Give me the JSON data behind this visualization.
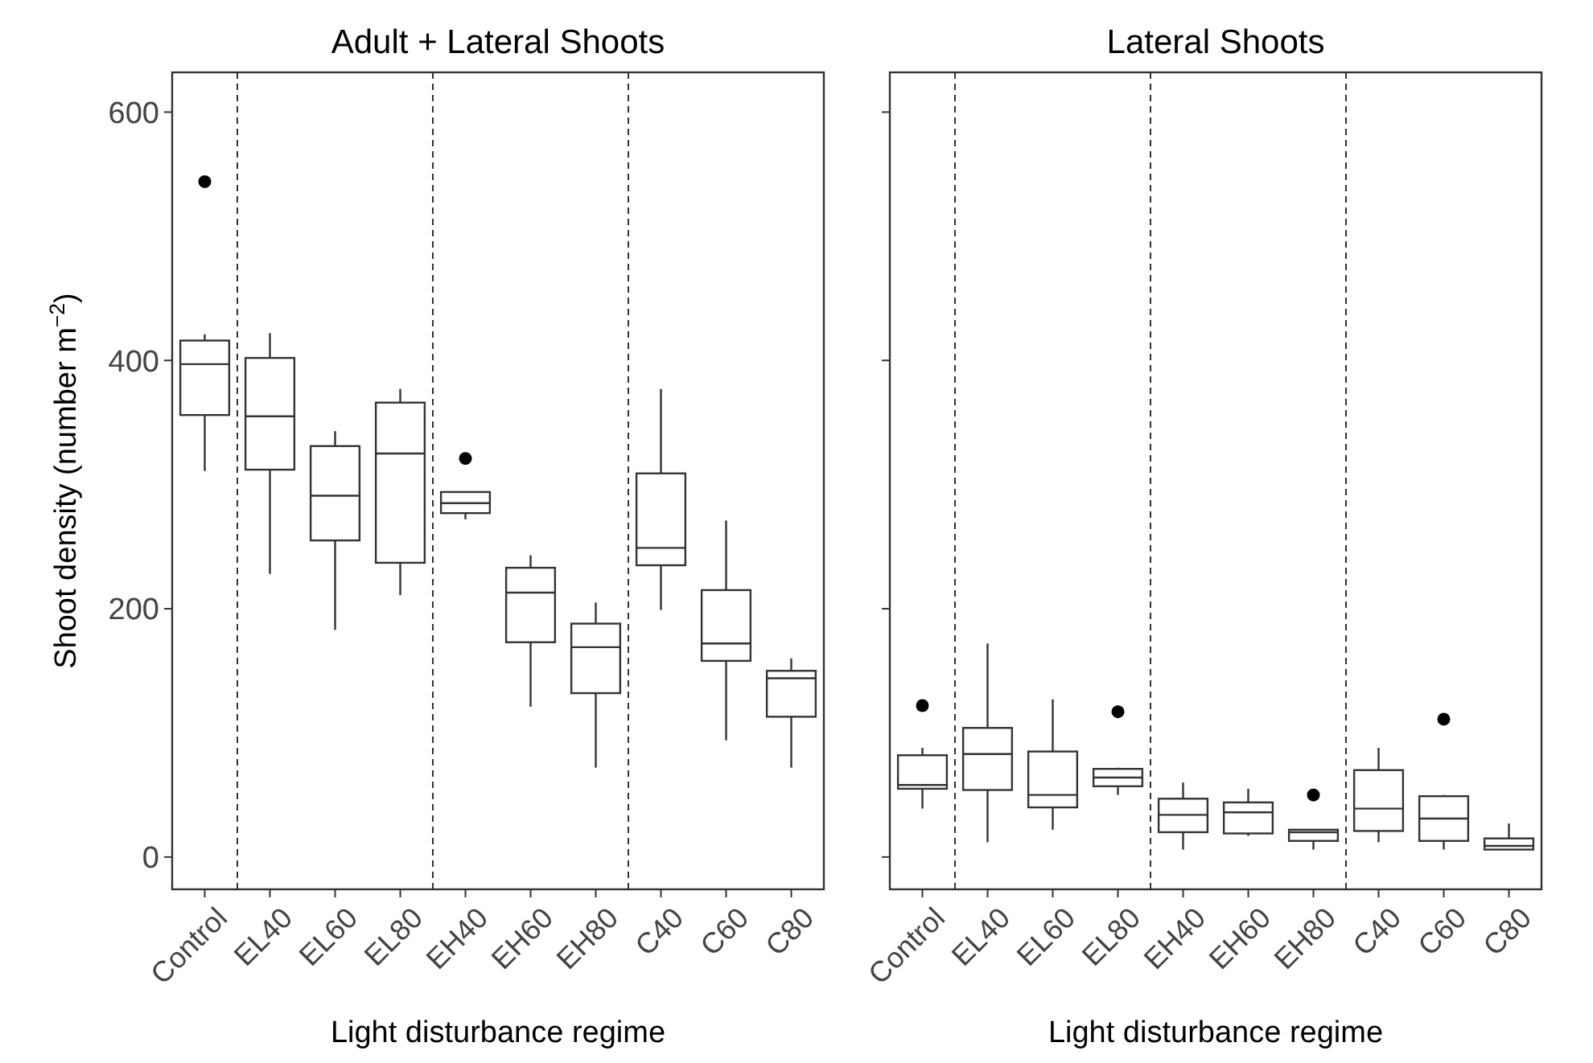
{
  "chart_data": [
    {
      "type": "box",
      "title": "Adult + Lateral Shoots",
      "xlabel": "Light disturbance regime",
      "ylabel": "Shoot density  (number m$^{−2}$)",
      "categories": [
        "Control",
        "EL40",
        "EL60",
        "EL80",
        "EH40",
        "EH60",
        "EH80",
        "C40",
        "C60",
        "C80"
      ],
      "color": "#333333",
      "ylim": [
        -26,
        632
      ],
      "yticks": [
        0,
        200,
        400,
        600
      ],
      "grid": false,
      "boxes": [
        {
          "low": 311,
          "q1": 356,
          "median": 397,
          "q3": 416,
          "high": 421,
          "outliers": [
            544
          ]
        },
        {
          "low": 228,
          "q1": 312,
          "median": 355,
          "q3": 402,
          "high": 422
        },
        {
          "low": 183,
          "q1": 255,
          "median": 291,
          "q3": 331,
          "high": 343
        },
        {
          "low": 211,
          "q1": 237,
          "median": 325,
          "q3": 366,
          "high": 377
        },
        {
          "low": 272,
          "q1": 277,
          "median": 285,
          "q3": 294,
          "high": 294,
          "outliers": [
            321
          ]
        },
        {
          "low": 121,
          "q1": 173,
          "median": 213,
          "q3": 233,
          "high": 243
        },
        {
          "low": 72,
          "q1": 132,
          "median": 169,
          "q3": 188,
          "high": 205
        },
        {
          "low": 199,
          "q1": 235,
          "median": 249,
          "q3": 309,
          "high": 377
        },
        {
          "low": 94,
          "q1": 158,
          "median": 172,
          "q3": 215,
          "high": 271
        },
        {
          "low": 72,
          "q1": 113,
          "median": 144,
          "q3": 150,
          "high": 160
        }
      ]
    },
    {
      "type": "box",
      "title": "Lateral Shoots",
      "xlabel": "Light disturbance regime",
      "categories": [
        "Control",
        "EL40",
        "EL60",
        "EL80",
        "EH40",
        "EH60",
        "EH80",
        "C40",
        "C60",
        "C80"
      ],
      "color": "#333333",
      "ylim": [
        -26,
        632
      ],
      "yticks": [
        0,
        200,
        400,
        600
      ],
      "grid": false,
      "tick_labels": "x",
      "boxes": [
        {
          "low": 39,
          "q1": 55,
          "median": 58,
          "q3": 82,
          "high": 88,
          "outliers": [
            122
          ]
        },
        {
          "low": 12,
          "q1": 54,
          "median": 83,
          "q3": 104,
          "high": 172
        },
        {
          "low": 22,
          "q1": 40,
          "median": 50,
          "q3": 85,
          "high": 127
        },
        {
          "low": 50,
          "q1": 57,
          "median": 64,
          "q3": 71,
          "high": 72,
          "outliers": [
            117
          ]
        },
        {
          "low": 6,
          "q1": 20,
          "median": 34,
          "q3": 47,
          "high": 60
        },
        {
          "low": 17,
          "q1": 19,
          "median": 36,
          "q3": 44,
          "high": 55
        },
        {
          "low": 6,
          "q1": 13,
          "median": 20,
          "q3": 22,
          "high": 22,
          "outliers": [
            50
          ]
        },
        {
          "low": 12,
          "q1": 21,
          "median": 39,
          "q3": 70,
          "high": 88
        },
        {
          "low": 6,
          "q1": 13,
          "median": 31,
          "q3": 49,
          "high": 50,
          "outliers": [
            111
          ]
        },
        {
          "low": 6,
          "q1": 6,
          "median": 9,
          "q3": 15,
          "high": 27
        }
      ]
    }
  ]
}
